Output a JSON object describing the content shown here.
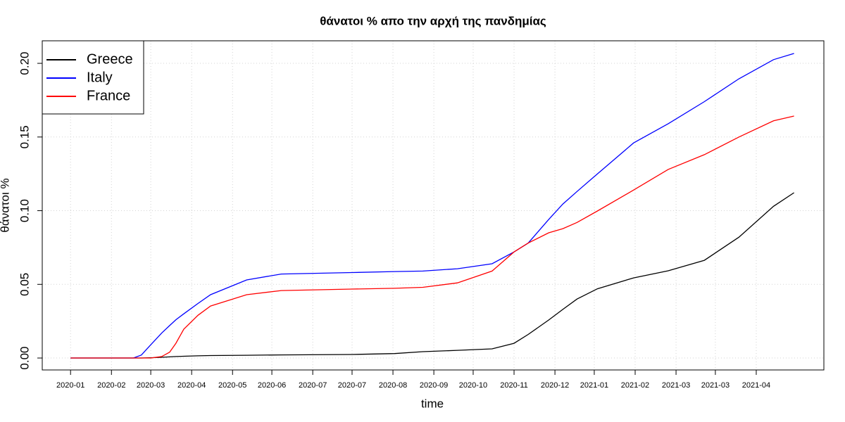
{
  "chart_data": {
    "type": "line",
    "title": "θάνατοι % απο την αρχή της πανδημίας",
    "x_label": "time",
    "y_label": "θάνατοι %",
    "x": [
      0,
      22,
      40,
      45,
      51,
      58,
      63,
      67,
      72,
      81,
      89,
      112,
      134,
      179,
      206,
      224,
      246,
      268,
      282,
      291,
      304,
      313,
      322,
      335,
      358,
      380,
      403,
      425,
      447,
      460
    ],
    "series": [
      {
        "name": "Greece",
        "color": "#000000",
        "values": [
          0,
          0,
          0,
          0,
          0.0002,
          0.0005,
          0.0008,
          0.001,
          0.0012,
          0.0015,
          0.0017,
          0.0019,
          0.0021,
          0.0024,
          0.003,
          0.0043,
          0.0052,
          0.0062,
          0.01,
          0.016,
          0.0258,
          0.033,
          0.04,
          0.047,
          0.0544,
          0.0592,
          0.0663,
          0.082,
          0.103,
          0.1122
        ]
      },
      {
        "name": "Italy",
        "color": "#0000ff",
        "values": [
          0,
          0,
          0,
          0.002,
          0.009,
          0.017,
          0.022,
          0.026,
          0.03,
          0.037,
          0.043,
          0.053,
          0.057,
          0.058,
          0.0587,
          0.059,
          0.0606,
          0.064,
          0.072,
          0.078,
          0.094,
          0.1045,
          0.113,
          0.125,
          0.146,
          0.159,
          0.174,
          0.1895,
          0.2025,
          0.2067
        ]
      },
      {
        "name": "France",
        "color": "#ff0000",
        "values": [
          0,
          0,
          0,
          0,
          0,
          0.001,
          0.004,
          0.01,
          0.0196,
          0.029,
          0.0353,
          0.043,
          0.0458,
          0.0468,
          0.0473,
          0.048,
          0.051,
          0.059,
          0.072,
          0.078,
          0.085,
          0.0878,
          0.092,
          0.0998,
          0.114,
          0.128,
          0.138,
          0.15,
          0.161,
          0.1642
        ]
      }
    ],
    "xlim": [
      -18,
      479
    ],
    "ylim": [
      -0.0081,
      0.2153
    ],
    "xticks": [
      {
        "value": 0,
        "label": "2020-01"
      },
      {
        "value": 26,
        "label": "2020-02"
      },
      {
        "value": 51,
        "label": "2020-03"
      },
      {
        "value": 77,
        "label": "2020-04"
      },
      {
        "value": 103,
        "label": "2020-05"
      },
      {
        "value": 128,
        "label": "2020-06"
      },
      {
        "value": 154,
        "label": "2020-07"
      },
      {
        "value": 179,
        "label": "2020-07"
      },
      {
        "value": 205,
        "label": "2020-08"
      },
      {
        "value": 231,
        "label": "2020-09"
      },
      {
        "value": 256,
        "label": "2020-10"
      },
      {
        "value": 282,
        "label": "2020-11"
      },
      {
        "value": 308,
        "label": "2020-12"
      },
      {
        "value": 333,
        "label": "2021-01"
      },
      {
        "value": 359,
        "label": "2021-02"
      },
      {
        "value": 385,
        "label": "2021-03"
      },
      {
        "value": 410,
        "label": "2021-03"
      },
      {
        "value": 436,
        "label": "2021-04"
      }
    ],
    "yticks": [
      {
        "value": 0,
        "label": "0.00"
      },
      {
        "value": 0.05,
        "label": "0.05"
      },
      {
        "value": 0.1,
        "label": "0.10"
      },
      {
        "value": 0.15,
        "label": "0.15"
      },
      {
        "value": 0.2,
        "label": "0.20"
      }
    ],
    "grid": true,
    "legend_position": "top-left"
  }
}
